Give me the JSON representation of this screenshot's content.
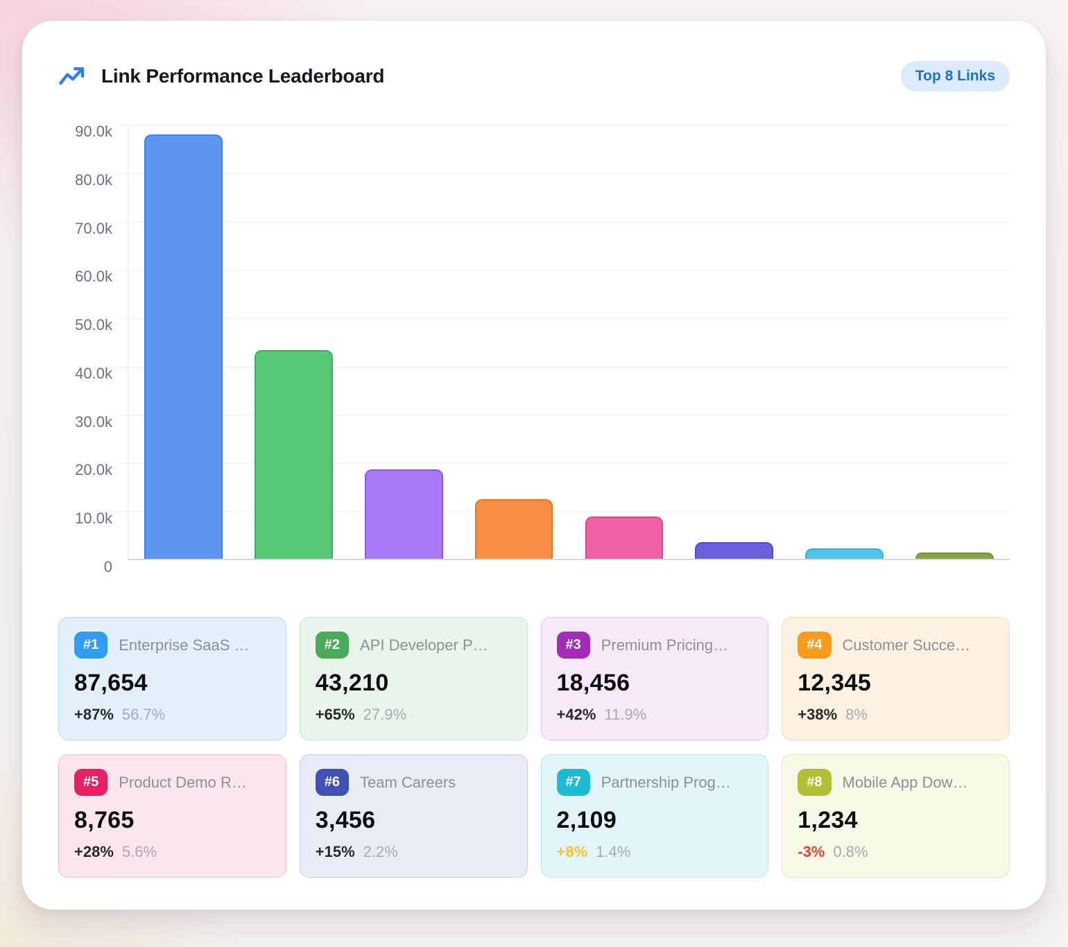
{
  "header": {
    "title": "Link Performance Leaderboard",
    "badge": "Top 8 Links",
    "icon": "trending-up-icon",
    "icon_color": "#2d7ef7",
    "badge_bg": "#dcebfc",
    "badge_text_color": "#1b6fd6"
  },
  "chart_data": {
    "type": "bar",
    "title": "Link Performance Leaderboard",
    "categories": [
      "Enterprise SaaS …",
      "API Developer P…",
      "Premium Pricing…",
      "Customer Succe…",
      "Product Demo R…",
      "Team Careers",
      "Partnership Prog…",
      "Mobile App Dow…"
    ],
    "values": [
      87654,
      43210,
      18456,
      12345,
      8765,
      3456,
      2109,
      1234
    ],
    "bar_fill_colors": [
      "#5c96f1",
      "#57c974",
      "#a879f5",
      "#f88e44",
      "#ee62a3",
      "#6a60dd",
      "#4ec3ec",
      "#7fa93a"
    ],
    "bar_border_colors": [
      "#3e7fe8",
      "#38b35c",
      "#9257ea",
      "#ef7422",
      "#e6408d",
      "#5547cf",
      "#2fb2e2",
      "#6d9329"
    ],
    "ylim": [
      0,
      90000
    ],
    "ytick_labels": [
      "90.0k",
      "80.0k",
      "70.0k",
      "60.0k",
      "50.0k",
      "40.0k",
      "30.0k",
      "20.0k",
      "10.0k",
      "0"
    ],
    "grid": true,
    "x_axis_labels": "none",
    "legend": "none"
  },
  "cards": [
    {
      "rank": "#1",
      "badge_color": "#2e9df3",
      "bg": "#e3f0fc",
      "border": "#b9dbf6",
      "title": "Enterprise SaaS …",
      "value": "87,654",
      "delta": "+87%",
      "delta_color": "#26282b",
      "share": "56.7%"
    },
    {
      "rank": "#2",
      "badge_color": "#47ab58",
      "bg": "#e9f5ea",
      "border": "#c7e6cb",
      "title": "API Developer P…",
      "value": "43,210",
      "delta": "+65%",
      "delta_color": "#26282b",
      "share": "27.9%"
    },
    {
      "rank": "#3",
      "badge_color": "#a12cb8",
      "bg": "#f7e9f8",
      "border": "#e4c2e9",
      "title": "Premium Pricing…",
      "value": "18,456",
      "delta": "+42%",
      "delta_color": "#26282b",
      "share": "11.9%"
    },
    {
      "rank": "#4",
      "badge_color": "#f79b1c",
      "bg": "#fdf1e1",
      "border": "#f7dcb2",
      "title": "Customer Succe…",
      "value": "12,345",
      "delta": "+38%",
      "delta_color": "#26282b",
      "share": "8%"
    },
    {
      "rank": "#5",
      "badge_color": "#e91e63",
      "bg": "#fce5ec",
      "border": "#f5bcd0",
      "title": "Product Demo R…",
      "value": "8,765",
      "delta": "+28%",
      "delta_color": "#26282b",
      "share": "5.6%"
    },
    {
      "rank": "#6",
      "badge_color": "#3f51b5",
      "bg": "#e9ebf7",
      "border": "#c8cde9",
      "title": "Team Careers",
      "value": "3,456",
      "delta": "+15%",
      "delta_color": "#26282b",
      "share": "2.2%"
    },
    {
      "rank": "#7",
      "badge_color": "#1bbcd4",
      "bg": "#e2f6f9",
      "border": "#b7e8ef",
      "title": "Partnership Prog…",
      "value": "2,109",
      "delta": "+8%",
      "delta_color": "#fdc02f",
      "share": "1.4%"
    },
    {
      "rank": "#8",
      "badge_color": "#b3bf33",
      "bg": "#f8f9e7",
      "border": "#e3e9b2",
      "title": "Mobile App Dow…",
      "value": "1,234",
      "delta": "-3%",
      "delta_color": "#e8413a",
      "share": "0.8%"
    }
  ]
}
